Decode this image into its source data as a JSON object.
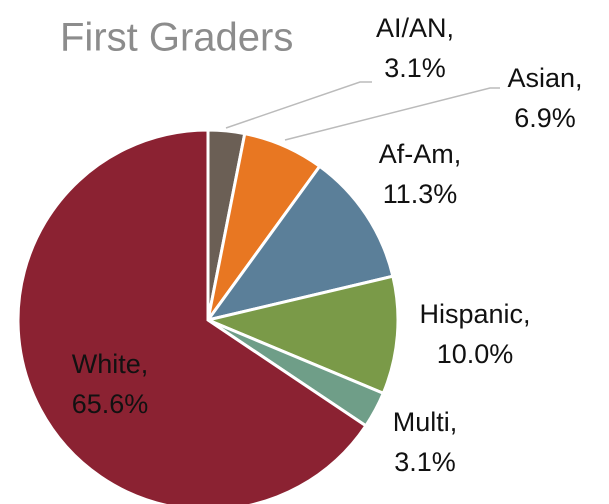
{
  "chart_data": {
    "type": "pie",
    "title": "First Graders",
    "categories": [
      "AI/AN,",
      "Asian,",
      "Af-Am,",
      "Hispanic,",
      "Multi,",
      "White,"
    ],
    "values": [
      3.1,
      6.9,
      11.3,
      10.0,
      3.1,
      65.6
    ],
    "value_labels": [
      "3.1%",
      "6.9%",
      "11.3%",
      "10.0%",
      "3.1%",
      "65.6%"
    ],
    "colors": [
      "#6b5f55",
      "#e87722",
      "#5b7f99",
      "#7a9a48",
      "#6f9e88",
      "#8b2232"
    ]
  }
}
